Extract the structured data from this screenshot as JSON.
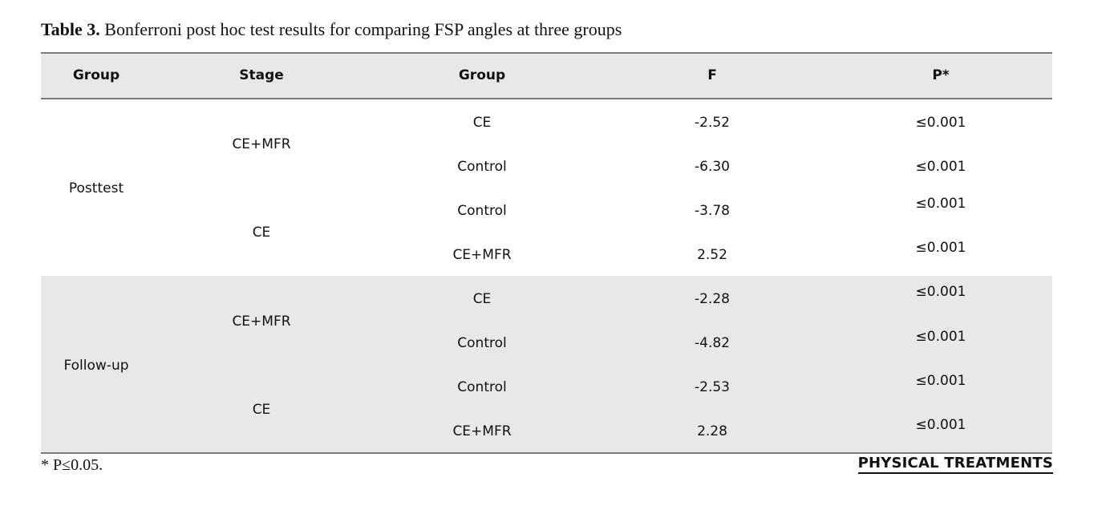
{
  "caption": {
    "label": "Table 3.",
    "text": " Bonferroni post hoc test results for comparing FSP angles at three groups"
  },
  "table": {
    "headers": [
      "Group",
      "Stage",
      "Group",
      "F",
      "P*"
    ],
    "blocks": [
      {
        "group": "Posttest",
        "stages": [
          {
            "stage": "CE+MFR",
            "rows": [
              {
                "group": "CE",
                "f": "-2.52",
                "p": "≤0.001"
              },
              {
                "group": "Control",
                "f": "-6.30",
                "p": "≤0.001"
              }
            ]
          },
          {
            "stage": "CE",
            "rows": [
              {
                "group": "Control",
                "f": "-3.78",
                "p": "≤0.001"
              },
              {
                "group": "CE+MFR",
                "f": "2.52",
                "p": "≤0.001"
              }
            ]
          }
        ]
      },
      {
        "group": "Follow-up",
        "stages": [
          {
            "stage": "CE+MFR",
            "rows": [
              {
                "group": "CE",
                "f": "-2.28",
                "p": "≤0.001"
              },
              {
                "group": "Control",
                "f": "-4.82",
                "p": "≤0.001"
              }
            ]
          },
          {
            "stage": "CE",
            "rows": [
              {
                "group": "Control",
                "f": "-2.53",
                "p": "≤0.001"
              },
              {
                "group": "CE+MFR",
                "f": "2.28",
                "p": "≤0.001"
              }
            ]
          }
        ]
      }
    ]
  },
  "footnote": "* P≤0.05.",
  "brand": "PHYSICAL TREATMENTS"
}
